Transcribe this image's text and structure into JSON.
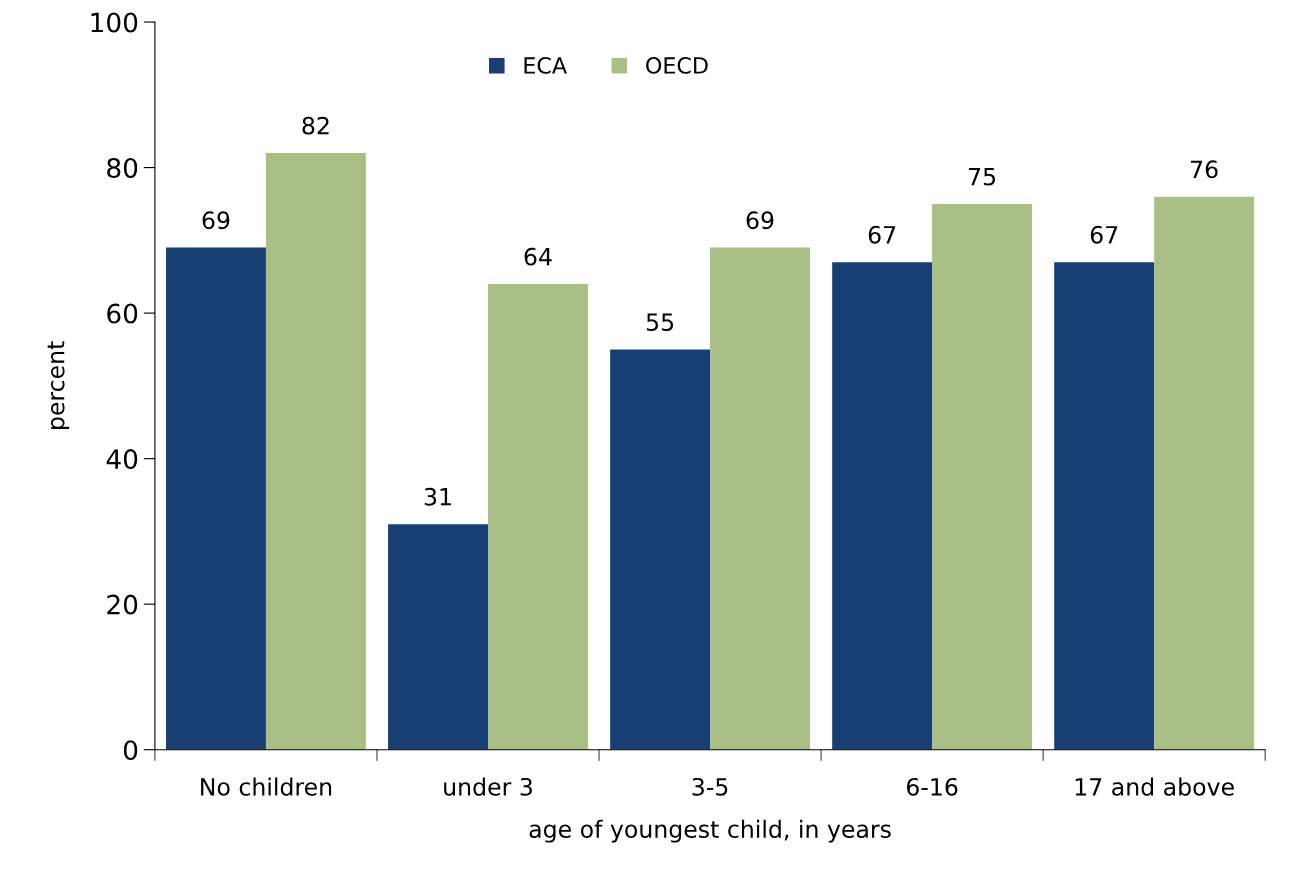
{
  "chart_data": {
    "type": "bar",
    "xlabel": "age of youngest child, in years",
    "ylabel": "percent",
    "categories": [
      "No children",
      "under 3",
      "3-5",
      "6-16",
      "17 and above"
    ],
    "series": [
      {
        "name": "ECA",
        "color": "#183f74",
        "values": [
          69,
          31,
          55,
          67,
          67
        ]
      },
      {
        "name": "OECD",
        "color": "#aabf83",
        "values": [
          82,
          64,
          69,
          75,
          76
        ]
      }
    ],
    "ylim": [
      0,
      100
    ],
    "yticks": [
      0,
      20,
      40,
      60,
      80,
      100
    ],
    "grid": false,
    "legend": "top",
    "data_labels": true
  }
}
